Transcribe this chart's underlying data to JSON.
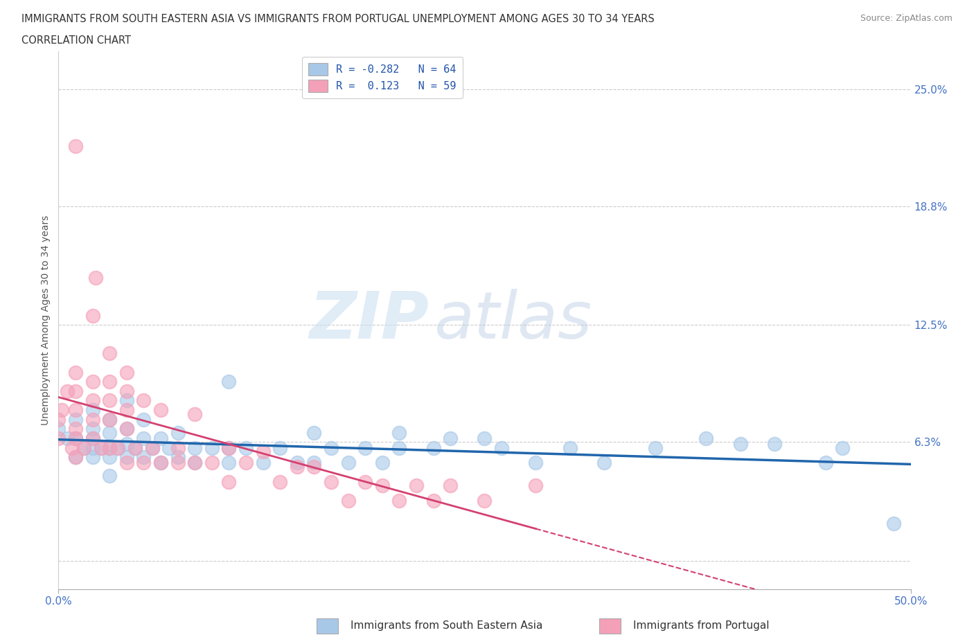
{
  "title_line1": "IMMIGRANTS FROM SOUTH EASTERN ASIA VS IMMIGRANTS FROM PORTUGAL UNEMPLOYMENT AMONG AGES 30 TO 34 YEARS",
  "title_line2": "CORRELATION CHART",
  "source": "Source: ZipAtlas.com",
  "ylabel": "Unemployment Among Ages 30 to 34 years",
  "xlim": [
    0.0,
    0.5
  ],
  "ylim": [
    -0.015,
    0.27
  ],
  "yticks": [
    0.0,
    0.063,
    0.125,
    0.188,
    0.25
  ],
  "ytick_labels": [
    "",
    "6.3%",
    "12.5%",
    "18.8%",
    "25.0%"
  ],
  "xticks": [
    0.0,
    0.5
  ],
  "xtick_labels": [
    "0.0%",
    "50.0%"
  ],
  "blue_R": -0.282,
  "blue_N": 64,
  "pink_R": 0.123,
  "pink_N": 59,
  "blue_color": "#a8c8e8",
  "pink_color": "#f4a0b8",
  "blue_line_color": "#2166ac",
  "pink_line_color": "#d44070",
  "pink_dashed_color": "#d44070",
  "watermark_zip": "ZIP",
  "watermark_atlas": "atlas",
  "legend_label_blue": "Immigrants from South Eastern Asia",
  "legend_label_pink": "Immigrants from Portugal",
  "blue_scatter_x": [
    0.0,
    0.005,
    0.01,
    0.01,
    0.01,
    0.015,
    0.02,
    0.02,
    0.02,
    0.02,
    0.02,
    0.025,
    0.03,
    0.03,
    0.03,
    0.03,
    0.03,
    0.035,
    0.04,
    0.04,
    0.04,
    0.04,
    0.045,
    0.05,
    0.05,
    0.05,
    0.055,
    0.06,
    0.06,
    0.065,
    0.07,
    0.07,
    0.08,
    0.08,
    0.09,
    0.1,
    0.1,
    0.1,
    0.11,
    0.12,
    0.13,
    0.14,
    0.15,
    0.15,
    0.16,
    0.17,
    0.18,
    0.19,
    0.2,
    0.2,
    0.22,
    0.23,
    0.25,
    0.26,
    0.28,
    0.3,
    0.32,
    0.35,
    0.38,
    0.4,
    0.42,
    0.45,
    0.46,
    0.49
  ],
  "blue_scatter_y": [
    0.07,
    0.065,
    0.055,
    0.065,
    0.075,
    0.06,
    0.055,
    0.06,
    0.065,
    0.07,
    0.08,
    0.06,
    0.045,
    0.055,
    0.06,
    0.068,
    0.075,
    0.06,
    0.055,
    0.062,
    0.07,
    0.085,
    0.06,
    0.055,
    0.065,
    0.075,
    0.06,
    0.052,
    0.065,
    0.06,
    0.055,
    0.068,
    0.052,
    0.06,
    0.06,
    0.052,
    0.06,
    0.095,
    0.06,
    0.052,
    0.06,
    0.052,
    0.052,
    0.068,
    0.06,
    0.052,
    0.06,
    0.052,
    0.06,
    0.068,
    0.06,
    0.065,
    0.065,
    0.06,
    0.052,
    0.06,
    0.052,
    0.06,
    0.065,
    0.062,
    0.062,
    0.052,
    0.06,
    0.02
  ],
  "pink_scatter_x": [
    0.0,
    0.0,
    0.002,
    0.005,
    0.008,
    0.01,
    0.01,
    0.01,
    0.01,
    0.01,
    0.01,
    0.01,
    0.015,
    0.02,
    0.02,
    0.02,
    0.02,
    0.02,
    0.022,
    0.025,
    0.03,
    0.03,
    0.03,
    0.03,
    0.03,
    0.035,
    0.04,
    0.04,
    0.04,
    0.04,
    0.04,
    0.045,
    0.05,
    0.05,
    0.055,
    0.06,
    0.06,
    0.07,
    0.07,
    0.08,
    0.08,
    0.09,
    0.1,
    0.1,
    0.11,
    0.12,
    0.13,
    0.14,
    0.15,
    0.16,
    0.17,
    0.18,
    0.19,
    0.2,
    0.21,
    0.22,
    0.23,
    0.25,
    0.28
  ],
  "pink_scatter_y": [
    0.065,
    0.075,
    0.08,
    0.09,
    0.06,
    0.055,
    0.065,
    0.07,
    0.08,
    0.09,
    0.1,
    0.22,
    0.06,
    0.065,
    0.075,
    0.085,
    0.095,
    0.13,
    0.15,
    0.06,
    0.06,
    0.075,
    0.085,
    0.095,
    0.11,
    0.06,
    0.052,
    0.07,
    0.08,
    0.09,
    0.1,
    0.06,
    0.052,
    0.085,
    0.06,
    0.052,
    0.08,
    0.052,
    0.06,
    0.052,
    0.078,
    0.052,
    0.042,
    0.06,
    0.052,
    0.058,
    0.042,
    0.05,
    0.05,
    0.042,
    0.032,
    0.042,
    0.04,
    0.032,
    0.04,
    0.032,
    0.04,
    0.032,
    0.04
  ]
}
